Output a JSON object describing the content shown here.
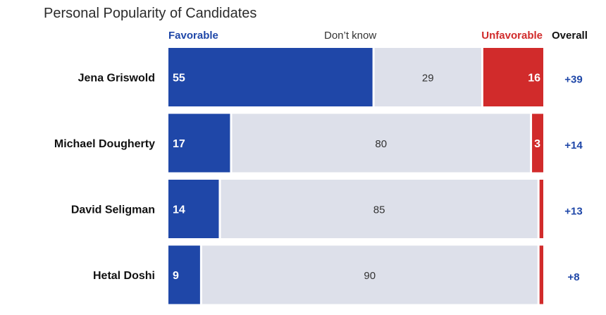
{
  "chart_data": {
    "type": "bar",
    "stacked": true,
    "orientation": "horizontal",
    "title": "Personal Popularity of Candidates",
    "columns": {
      "favorable": "Favorable",
      "dont_know": "Don’t know",
      "unfavorable": "Unfavorable",
      "overall": "Overall"
    },
    "categories": [
      "Jena Griswold",
      "Michael Dougherty",
      "David Seligman",
      "Hetal Doshi"
    ],
    "series": [
      {
        "name": "Favorable",
        "values": [
          55,
          17,
          14,
          9
        ]
      },
      {
        "name": "Don’t know",
        "values": [
          29,
          80,
          85,
          90
        ]
      },
      {
        "name": "Unfavorable",
        "values": [
          16,
          3,
          1,
          1
        ]
      }
    ],
    "overall_labels": [
      "+39",
      "+14",
      "+13",
      "+8"
    ],
    "unfavorable_labels": [
      "16",
      "3",
      "",
      ""
    ],
    "xlim": [
      0,
      100
    ]
  },
  "colors": {
    "favorable": "#1f47a8",
    "dont_know": "#dde0ea",
    "unfavorable": "#d12b2b",
    "overall_text": "#1f47a8",
    "label_text": "#111111"
  }
}
